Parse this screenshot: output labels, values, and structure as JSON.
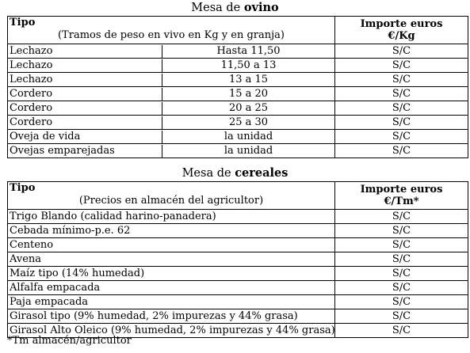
{
  "ovino": {
    "title_prefix": "Mesa de ",
    "title_bold": "ovino",
    "header": {
      "tipo": "Tipo",
      "subtitle": "(Tramos de peso en vivo en Kg y en granja)",
      "importe": "Importe euros",
      "unit": "€/Kg"
    },
    "rows": [
      {
        "tipo": "Lechazo",
        "rango": "Hasta 11,50",
        "importe": "S/C"
      },
      {
        "tipo": "Lechazo",
        "rango": "11,50 a 13",
        "importe": "S/C"
      },
      {
        "tipo": "Lechazo",
        "rango": "13 a 15",
        "importe": "S/C"
      },
      {
        "tipo": "Cordero",
        "rango": "15 a 20",
        "importe": "S/C"
      },
      {
        "tipo": "Cordero",
        "rango": "20 a 25",
        "importe": "S/C"
      },
      {
        "tipo": "Cordero",
        "rango": "25 a 30",
        "importe": "S/C"
      },
      {
        "tipo": "Oveja de vida",
        "rango": "la unidad",
        "importe": "S/C"
      },
      {
        "tipo": "Ovejas emparejadas",
        "rango": "la unidad",
        "importe": "S/C"
      }
    ]
  },
  "cereales": {
    "title_prefix": "Mesa de ",
    "title_bold": "cereales",
    "header": {
      "tipo": "Tipo",
      "subtitle": "(Precios en almacén del agricultor)",
      "importe": "Importe euros",
      "unit": "€/Tm*"
    },
    "rows": [
      {
        "tipo": "Trigo Blando (calidad harino-panadera)",
        "importe": "S/C"
      },
      {
        "tipo": "Cebada mínimo-p.e. 62",
        "importe": "S/C"
      },
      {
        "tipo": "Centeno",
        "importe": "S/C"
      },
      {
        "tipo": "Avena",
        "importe": "S/C"
      },
      {
        "tipo": "Maíz tipo (14% humedad)",
        "importe": "S/C"
      },
      {
        "tipo": "Alfalfa empacada",
        "importe": "S/C"
      },
      {
        "tipo": "Paja empacada",
        "importe": "S/C"
      },
      {
        "tipo": "Girasol tipo (9% humedad, 2% impurezas y 44% grasa)",
        "importe": "S/C"
      },
      {
        "tipo": "Girasol Alto Oleico (9% humedad, 2% impurezas y 44% grasa)",
        "importe": "S/C"
      }
    ]
  },
  "footnote": "*Tm almacén/agricultor"
}
